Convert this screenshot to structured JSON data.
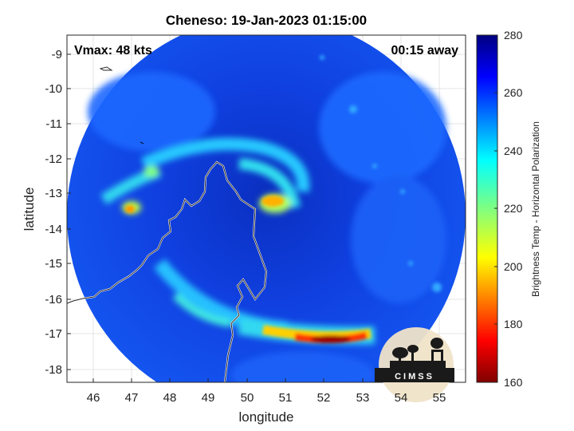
{
  "title": "Cheneso: 19-Jan-2023 01:15:00",
  "vmax_label": "Vmax: 48 kts",
  "time_label": "00:15 away",
  "xlabel": "longitude",
  "ylabel": "latitude",
  "colorbar_label": "Brightness Temp - Horizontal Polarization",
  "logo_text": "CIMSS",
  "chart_data": {
    "type": "heatmap",
    "title": "Cheneso: 19-Jan-2023 01:15:00",
    "xlabel": "longitude",
    "ylabel": "latitude",
    "xlim": [
      45.4,
      55.6
    ],
    "ylim": [
      -18.4,
      -8.4
    ],
    "xticks": [
      46,
      47,
      48,
      49,
      50,
      51,
      52,
      53,
      54,
      55
    ],
    "yticks": [
      -9,
      -10,
      -11,
      -12,
      -13,
      -14,
      -15,
      -16,
      -17,
      -18
    ],
    "grid": true,
    "colorbar": {
      "min": 160,
      "max": 280,
      "ticks": [
        160,
        180,
        200,
        220,
        240,
        260,
        280
      ],
      "colormap": "jet",
      "label": "Brightness Temp - Horizontal Polarization"
    }
  }
}
